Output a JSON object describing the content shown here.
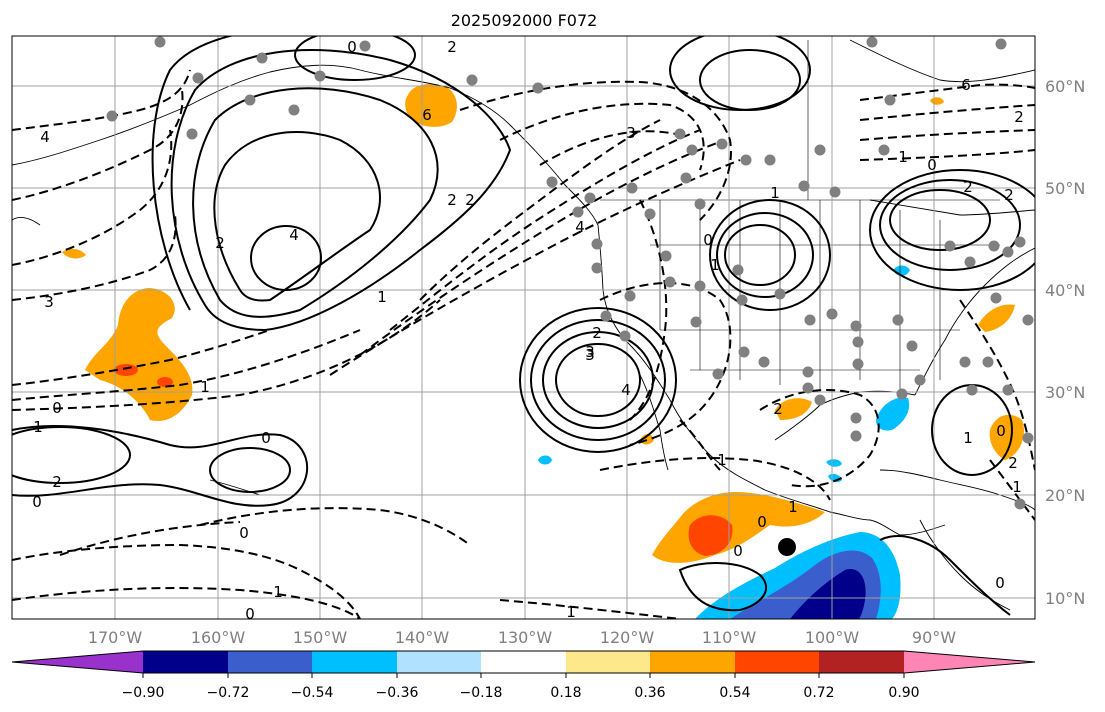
{
  "title": "2025092000 F072",
  "lat_labels": [
    "60°N",
    "50°N",
    "40°N",
    "30°N",
    "20°N",
    "10°N"
  ],
  "lon_labels": [
    "170°W",
    "160°W",
    "150°W",
    "140°W",
    "130°W",
    "120°W",
    "110°W",
    "100°W",
    "90°W"
  ],
  "colorbar": {
    "colors": [
      "#9932cc",
      "#00008b",
      "#3a5fcd",
      "#00bfff",
      "#b0e2ff",
      "#ffffff",
      "#fde98c",
      "#ffa500",
      "#ff4500",
      "#b22222",
      "#ff85b4"
    ],
    "ticks": [
      "−0.90",
      "−0.72",
      "−0.54",
      "−0.36",
      "−0.18",
      "0.18",
      "0.36",
      "0.54",
      "0.72",
      "0.90"
    ]
  },
  "contour_labels": [
    "0",
    "2",
    "0",
    "4",
    "1",
    "6",
    "3",
    "1",
    "0",
    "2",
    "2",
    "2",
    "6",
    "3",
    "2",
    "0",
    "1",
    "4",
    "2",
    "4",
    "3",
    "2",
    "0",
    "1",
    "2",
    "1",
    "0",
    "1",
    "4",
    "3",
    "2",
    "1",
    "0",
    "1",
    "0",
    "0",
    "2",
    "1",
    "1",
    "0",
    "1",
    "0",
    "2",
    "0",
    "1"
  ],
  "grid_color": "#a0a0a0",
  "map_elements": [
    "coastlines",
    "state-borders",
    "observation-dots",
    "storm-center-marker"
  ]
}
